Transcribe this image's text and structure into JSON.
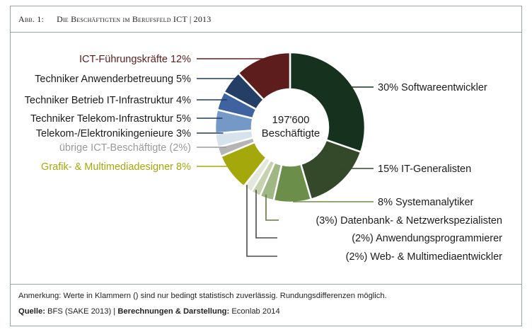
{
  "header": {
    "figure_no": "Abb. 1:",
    "title": "Die Beschäftigten im Berufsfeld ICT | 2013"
  },
  "chart_data": {
    "type": "pie",
    "center_label": [
      "197'600",
      "Beschäftigte"
    ],
    "slices": [
      {
        "label": "30% Softwareentwickler",
        "value": 30,
        "color": "#16321f"
      },
      {
        "label": "15% IT-Generalisten",
        "value": 15,
        "color": "#33492a"
      },
      {
        "label": "8% Systemanalytiker",
        "value": 8,
        "color": "#6b8f4a"
      },
      {
        "label": "(3%) Datenbank- & Netzwerkspezialisten",
        "value": 3,
        "color": "#9fb783"
      },
      {
        "label": "(2%) Anwendungsprogrammierer",
        "value": 2,
        "color": "#c4d2ad"
      },
      {
        "label": "(2%) Web- & Multimediaentwickler",
        "value": 2,
        "color": "#e3e8dc"
      },
      {
        "label": "Grafik- & Multimediadesigner 8%",
        "value": 8,
        "color": "#a5a80a"
      },
      {
        "label": "übrige ICT-Beschäftigte (2%)",
        "value": 2,
        "color": "#b5b5b5"
      },
      {
        "label": "Telekom-/Elektronikingenieure 3%",
        "value": 3,
        "color": "#d7e3ec"
      },
      {
        "label": "Techniker Telekom-Infrastruktur 5%",
        "value": 5,
        "color": "#7499c6"
      },
      {
        "label": "Techniker Betrieb IT-Infrastruktur 4%",
        "value": 4,
        "color": "#3f63a0"
      },
      {
        "label": "Techniker Anwenderbetreuung 5%",
        "value": 5,
        "color": "#243e66"
      },
      {
        "label": "ICT-Führungskräfte 12%",
        "value": 12,
        "color": "#5e1d1d"
      }
    ]
  },
  "footer": {
    "note_label": "Anmerkung:",
    "note_text": "Werte in Klammern () sind nur bedingt statistisch zuverlässig. Rundungsdifferenzen möglich.",
    "source_label": "Quelle:",
    "source_text": "BFS (SAKE 2013) | ",
    "calc_label": "Berechnungen & Darstellung:",
    "calc_text": "Econlab 2014"
  }
}
